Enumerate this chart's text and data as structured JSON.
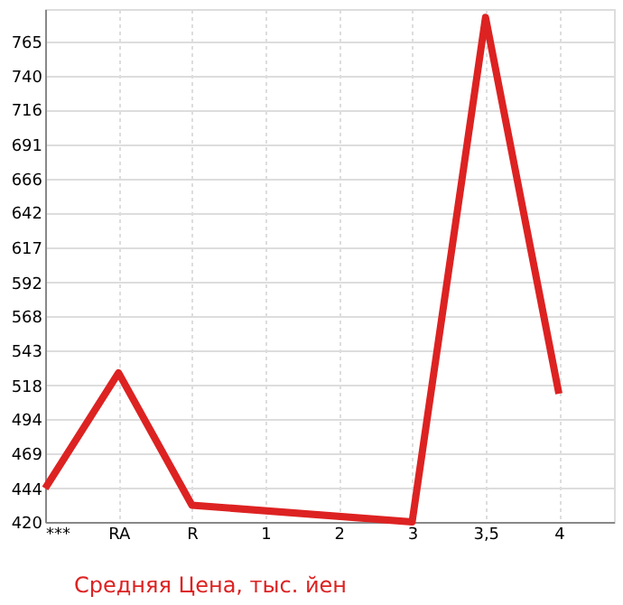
{
  "chart_data": {
    "type": "line",
    "categories": [
      "***",
      "RA",
      "R",
      "1",
      "2",
      "3",
      "3,5",
      "4"
    ],
    "series": [
      {
        "name": "Средняя Цена, тыс. йен",
        "color": "#dd2222",
        "values": [
          444,
          527,
          432,
          null,
          null,
          420,
          782,
          512
        ]
      }
    ],
    "ylim": [
      420,
      788
    ],
    "yticks": [
      420,
      444,
      469,
      494,
      518,
      543,
      568,
      592,
      617,
      642,
      666,
      691,
      716,
      740,
      765
    ],
    "grid": true,
    "legend": "bottom left",
    "marker": "none",
    "line_style": "solid"
  }
}
